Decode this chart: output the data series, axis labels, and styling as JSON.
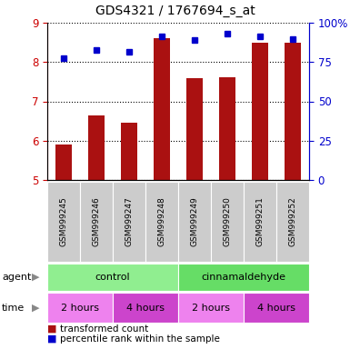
{
  "title": "GDS4321 / 1767694_s_at",
  "samples": [
    "GSM999245",
    "GSM999246",
    "GSM999247",
    "GSM999248",
    "GSM999249",
    "GSM999250",
    "GSM999251",
    "GSM999252"
  ],
  "red_values": [
    5.9,
    6.65,
    6.45,
    8.6,
    7.6,
    7.62,
    8.5,
    8.5
  ],
  "blue_values": [
    8.1,
    8.3,
    8.25,
    8.65,
    8.55,
    8.72,
    8.65,
    8.58
  ],
  "ylim_left": [
    5,
    9
  ],
  "ylim_right": [
    0,
    100
  ],
  "yticks_left": [
    5,
    6,
    7,
    8,
    9
  ],
  "yticks_right": [
    0,
    25,
    50,
    75,
    100
  ],
  "right_tick_labels": [
    "0",
    "25",
    "50",
    "75",
    "100%"
  ],
  "agent_row": [
    {
      "label": "control",
      "span": [
        0,
        4
      ],
      "color": "#90ee90"
    },
    {
      "label": "cinnamaldehyde",
      "span": [
        4,
        8
      ],
      "color": "#66dd66"
    }
  ],
  "time_row": [
    {
      "label": "2 hours",
      "span": [
        0,
        2
      ],
      "color": "#ee82ee"
    },
    {
      "label": "4 hours",
      "span": [
        2,
        4
      ],
      "color": "#cc44cc"
    },
    {
      "label": "2 hours",
      "span": [
        4,
        6
      ],
      "color": "#ee82ee"
    },
    {
      "label": "4 hours",
      "span": [
        6,
        8
      ],
      "color": "#cc44cc"
    }
  ],
  "bar_color": "#aa1111",
  "dot_color": "#0000cc",
  "left_axis_color": "#cc0000",
  "right_axis_color": "#0000cc",
  "sample_bg_color": "#cccccc",
  "legend_red": "transformed count",
  "legend_blue": "percentile rank within the sample"
}
